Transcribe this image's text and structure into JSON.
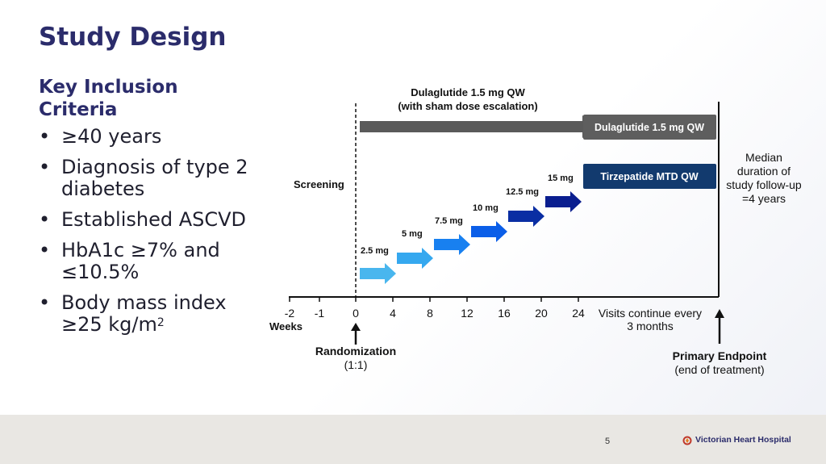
{
  "title": "Study Design",
  "inclusion": {
    "heading": "Key Inclusion Criteria",
    "items": [
      {
        "text": "≥40 years"
      },
      {
        "text": "Diagnosis of type 2 diabetes"
      },
      {
        "text": "Established ASCVD"
      },
      {
        "text": "HbA1c ≥7% and ≤10.5%"
      },
      {
        "text": "Body mass index ≥25 kg/m",
        "sup": "2"
      }
    ]
  },
  "diagram": {
    "dula_header": [
      "Dulaglutide 1.5 mg QW",
      "(with sham dose escalation)"
    ],
    "dula_box": "Dulaglutide 1.5 mg QW",
    "tirz_box": "Tirzepatide MTD QW",
    "screening": "Screening",
    "doses": [
      "2.5 mg",
      "5 mg",
      "7.5 mg",
      "10 mg",
      "12.5 mg",
      "15 mg"
    ],
    "ticks": [
      "-2",
      "-1",
      "0",
      "4",
      "8",
      "12",
      "16",
      "20",
      "24"
    ],
    "axis_label": "Weeks",
    "visits_note": [
      "Visits continue every",
      "3 months"
    ],
    "followup_note": [
      "Median",
      "duration of",
      "study follow-up",
      "=4 years"
    ],
    "randomization": [
      "Randomization",
      "(1:1)"
    ],
    "primary_endpoint": [
      "Primary Endpoint",
      "(end of treatment)"
    ],
    "colors": {
      "dula": "#5a5a5a",
      "tirz_box": "#123a6e",
      "dose_arrows": [
        "#49b6ee",
        "#35a8ef",
        "#1880f0",
        "#0b5ee8",
        "#0a2ea3",
        "#0a1e8f"
      ]
    }
  },
  "footer": {
    "page_number": "5",
    "logo_text": "Victorian Heart Hospital"
  }
}
